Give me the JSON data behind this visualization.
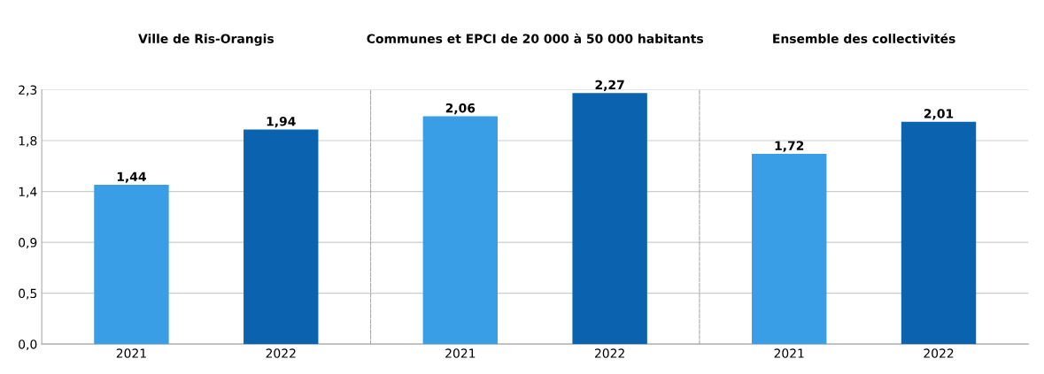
{
  "chart_data": [
    {
      "type": "bar",
      "title": "Ville de Ris-Orangis",
      "categories": [
        "2021",
        "2022"
      ],
      "values": [
        1.44,
        1.94
      ],
      "colors": [
        "#3a9ee6",
        "#0b63b0"
      ],
      "value_labels": [
        "1,44",
        "1,94"
      ],
      "ylim": [
        0,
        2.3
      ],
      "yticks": [
        {
          "value": 0,
          "label": "0,0"
        },
        {
          "value": 0.46,
          "label": "0,5"
        },
        {
          "value": 0.92,
          "label": "0,9"
        },
        {
          "value": 1.38,
          "label": "1,4"
        },
        {
          "value": 1.84,
          "label": "1,8"
        },
        {
          "value": 2.3,
          "label": "2,3"
        }
      ],
      "grid": "y"
    },
    {
      "type": "bar",
      "title": "Communes et EPCI de 20 000 à 50 000 habitants",
      "categories": [
        "2021",
        "2022"
      ],
      "values": [
        2.06,
        2.27
      ],
      "colors": [
        "#3a9ee6",
        "#0b63b0"
      ],
      "value_labels": [
        "2,06",
        "2,27"
      ],
      "ylim": [
        0,
        2.3
      ],
      "grid": "y",
      "tick_labels": "x"
    },
    {
      "type": "bar",
      "title": "Ensemble des collectivités",
      "categories": [
        "2021",
        "2022"
      ],
      "values": [
        1.72,
        2.01
      ],
      "colors": [
        "#3a9ee6",
        "#0b63b0"
      ],
      "value_labels": [
        "1,72",
        "2,01"
      ],
      "ylim": [
        0,
        2.3
      ],
      "grid": "y",
      "tick_labels": "x"
    }
  ]
}
